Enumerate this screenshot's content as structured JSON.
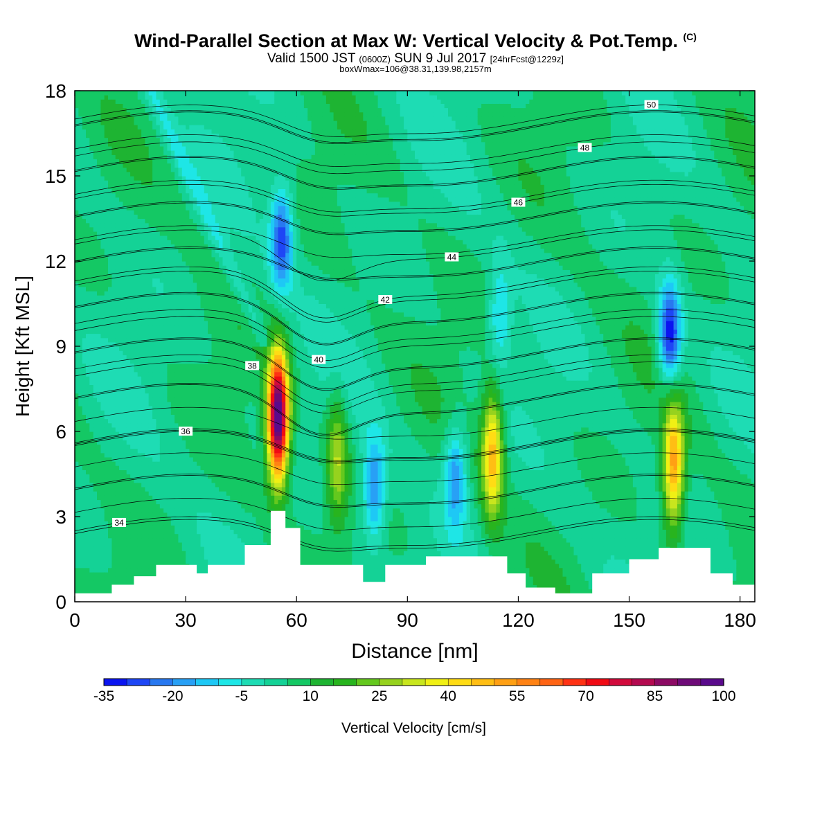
{
  "header": {
    "title": "Wind-Parallel Section at Max W: Vertical Velocity & Pot.Temp.",
    "title_mark": "(C)",
    "valid_prefix": "Valid 1500 JST",
    "valid_zulu": "(0600Z)",
    "valid_date": "SUN 9 Jul 2017",
    "forecast": "[24hrFcst@1229z]",
    "boxwmax": "boxWmax=106@38.31,139.98,2157m"
  },
  "chart_data": {
    "type": "heatmap",
    "xlabel": "Distance [nm]",
    "ylabel": "Height [Kft MSL]",
    "xlim": [
      0,
      184
    ],
    "ylim": [
      0,
      18
    ],
    "x_ticks": [
      0,
      30,
      60,
      90,
      120,
      150,
      180
    ],
    "y_ticks": [
      0,
      3,
      6,
      9,
      12,
      15,
      18
    ],
    "colorbar": {
      "label": "Vertical Velocity [cm/s]",
      "tick_labels": [
        "-35",
        "-20",
        "-5",
        "10",
        "25",
        "40",
        "55",
        "70",
        "85",
        "100"
      ],
      "levels": [
        -35,
        -30,
        -25,
        -20,
        -15,
        -10,
        -5,
        0,
        5,
        10,
        15,
        20,
        25,
        30,
        35,
        40,
        45,
        50,
        55,
        60,
        65,
        70,
        75,
        80,
        85,
        90,
        95,
        100
      ],
      "colors": [
        "#0a14f0",
        "#1e46f5",
        "#2878f0",
        "#28a0f5",
        "#1ec8f5",
        "#1ee6e6",
        "#1edcb4",
        "#14d296",
        "#14c864",
        "#1eb432",
        "#28b41e",
        "#64c81e",
        "#96d21e",
        "#c8e61e",
        "#f0f014",
        "#ffdc14",
        "#ffbe14",
        "#ffa014",
        "#ff8214",
        "#ff6414",
        "#ff3214",
        "#f00a14",
        "#d20a3c",
        "#b40a50",
        "#8c0a64",
        "#6e0a78",
        "#5a0a8c"
      ]
    },
    "updraft_cores": [
      {
        "x": 55,
        "z": 6.5,
        "w_max": 106
      },
      {
        "x": 71,
        "z": 5.0,
        "w_max": 32
      },
      {
        "x": 113,
        "z": 5.2,
        "w_max": 50
      },
      {
        "x": 162,
        "z": 4.8,
        "w_max": 55
      }
    ],
    "downdraft_cores": [
      {
        "x": 56,
        "z": 12.8,
        "w_min": -28
      },
      {
        "x": 81,
        "z": 4.0,
        "w_min": -22
      },
      {
        "x": 103,
        "z": 4.5,
        "w_min": -20
      },
      {
        "x": 115,
        "z": 10.0,
        "w_min": -12
      },
      {
        "x": 161,
        "z": 9.4,
        "w_min": -35
      }
    ],
    "terrain_profile": {
      "x": [
        0,
        10,
        16,
        22,
        29,
        33,
        36,
        46,
        53,
        57,
        61,
        69,
        78,
        84,
        95,
        110,
        117,
        122,
        130,
        140,
        150,
        158,
        165,
        172,
        178,
        184
      ],
      "height": [
        0.3,
        0.6,
        0.9,
        1.3,
        1.3,
        1.0,
        1.3,
        2.0,
        3.2,
        2.6,
        1.3,
        1.3,
        0.7,
        1.3,
        1.6,
        1.6,
        1.0,
        0.5,
        0.3,
        1.0,
        1.5,
        1.9,
        1.9,
        1.0,
        0.6,
        0.3
      ]
    },
    "isentrope_labels": [
      "34",
      "36",
      "38",
      "40",
      "42",
      "44",
      "46",
      "48",
      "50"
    ]
  }
}
